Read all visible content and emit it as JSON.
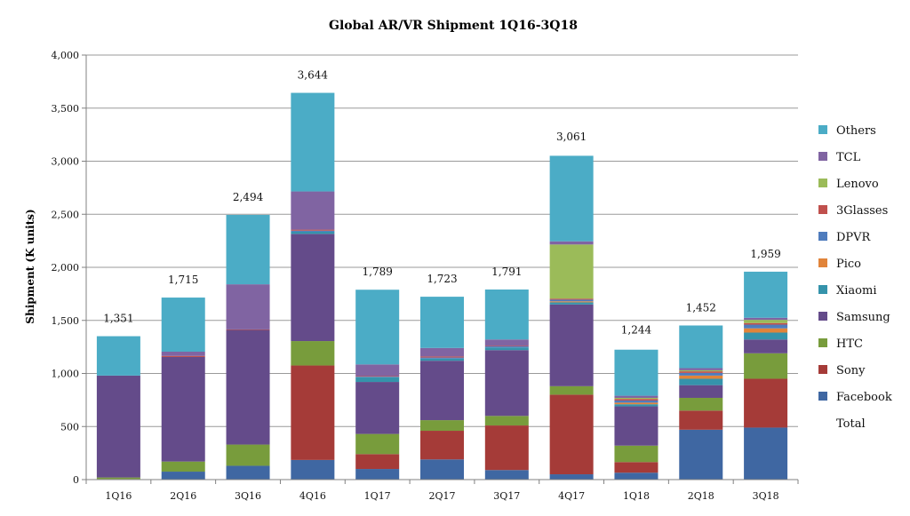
{
  "chart_data": {
    "type": "bar",
    "stacked": true,
    "title": "Global AR/VR Shipment 1Q16-3Q18",
    "xlabel": "",
    "ylabel": "Shipment (K units)",
    "ylim": [
      0,
      4000
    ],
    "yticks": [
      0,
      500,
      1000,
      1500,
      2000,
      2500,
      3000,
      3500,
      4000
    ],
    "ytick_labels": [
      "0",
      "500",
      "1,000",
      "1,500",
      "2,000",
      "2,500",
      "3,000",
      "3,500",
      "4,000"
    ],
    "grid": "horizontal",
    "legend_position": "right",
    "categories": [
      "1Q16",
      "2Q16",
      "3Q16",
      "4Q16",
      "1Q17",
      "2Q17",
      "3Q17",
      "4Q17",
      "1Q18",
      "2Q18",
      "3Q18"
    ],
    "series": [
      {
        "name": "Facebook",
        "color": "#3f67a2",
        "values": [
          5,
          75,
          130,
          185,
          100,
          190,
          90,
          50,
          65,
          470,
          490
        ]
      },
      {
        "name": "Sony",
        "color": "#a53b38",
        "values": [
          0,
          0,
          0,
          890,
          140,
          270,
          420,
          750,
          100,
          180,
          460
        ]
      },
      {
        "name": "HTC",
        "color": "#789c3c",
        "values": [
          15,
          95,
          200,
          230,
          190,
          100,
          90,
          80,
          155,
          120,
          240
        ]
      },
      {
        "name": "Samsung",
        "color": "#644b8a",
        "values": [
          960,
          985,
          1080,
          1010,
          490,
          560,
          620,
          770,
          370,
          120,
          130
        ]
      },
      {
        "name": "Xiaomi",
        "color": "#3593ab",
        "values": [
          0,
          0,
          0,
          20,
          45,
          20,
          25,
          20,
          20,
          60,
          65
        ]
      },
      {
        "name": "Pico",
        "color": "#e1843a",
        "values": [
          0,
          0,
          0,
          0,
          0,
          0,
          0,
          10,
          15,
          30,
          40
        ]
      },
      {
        "name": "DPVR",
        "color": "#4f7cbd",
        "values": [
          0,
          0,
          0,
          10,
          5,
          10,
          10,
          15,
          20,
          25,
          35
        ]
      },
      {
        "name": "3Glasses",
        "color": "#c0504d",
        "values": [
          0,
          10,
          5,
          10,
          5,
          10,
          5,
          10,
          15,
          15,
          15
        ]
      },
      {
        "name": "Lenovo",
        "color": "#9bbb59",
        "values": [
          0,
          0,
          0,
          0,
          0,
          0,
          0,
          510,
          10,
          10,
          30
        ]
      },
      {
        "name": "TCL",
        "color": "#8064a2",
        "values": [
          0,
          40,
          425,
          360,
          110,
          80,
          60,
          30,
          20,
          20,
          20
        ]
      },
      {
        "name": "Others",
        "color": "#4bacc6",
        "values": [
          371,
          510,
          654,
          929,
          704,
          483,
          471,
          806,
          434,
          402,
          434
        ]
      }
    ],
    "totals": {
      "name": "Total",
      "values": [
        1351,
        1715,
        2494,
        3644,
        1789,
        1723,
        1791,
        3061,
        1244,
        1452,
        1959
      ],
      "labels": [
        "1,351",
        "1,715",
        "2,494",
        "3,644",
        "1,789",
        "1,723",
        "1,791",
        "3,061",
        "1,244",
        "1,452",
        "1,959"
      ]
    },
    "legend": [
      "Others",
      "TCL",
      "Lenovo",
      "3Glasses",
      "DPVR",
      "Pico",
      "Xiaomi",
      "Samsung",
      "HTC",
      "Sony",
      "Facebook",
      "Total"
    ]
  }
}
